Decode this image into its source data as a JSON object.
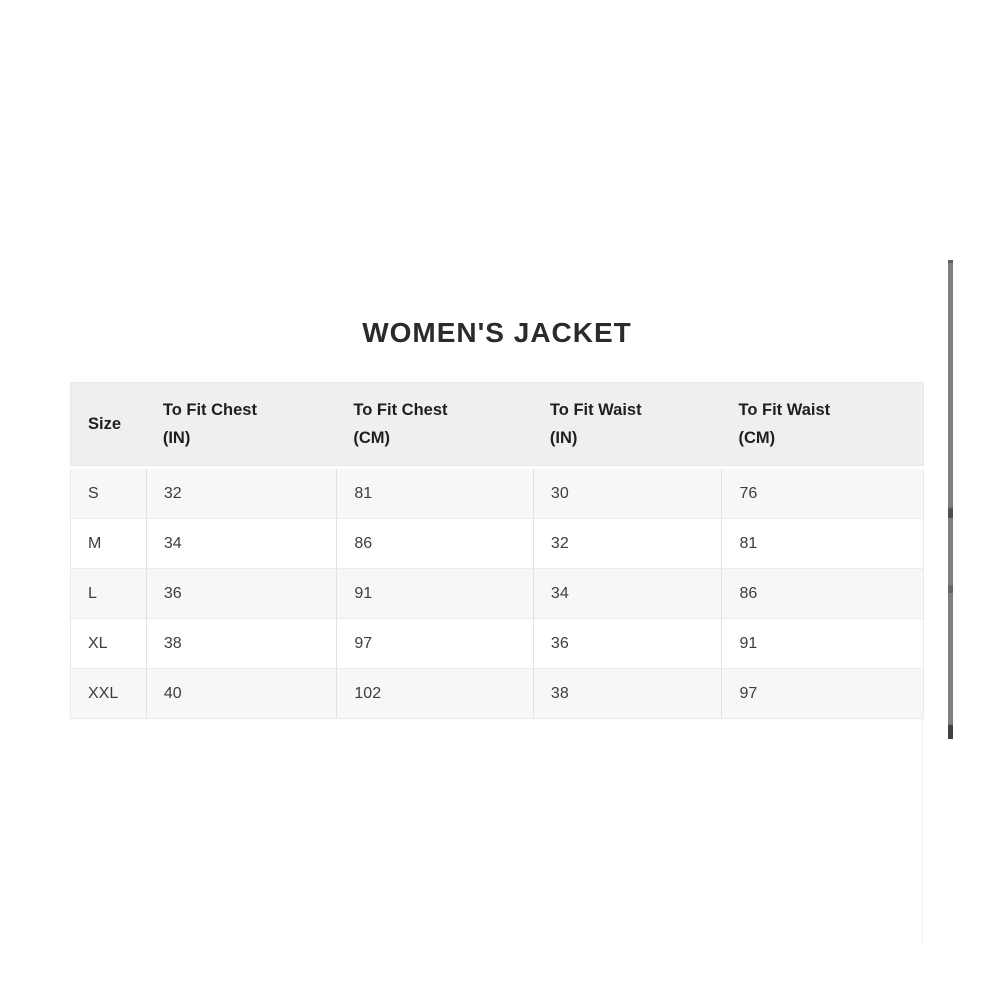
{
  "title": "WOMEN'S JACKET",
  "size_chart": {
    "headers": [
      {
        "line1": "Size",
        "line2": ""
      },
      {
        "line1": "To Fit Chest",
        "line2": "(IN)"
      },
      {
        "line1": "To Fit Chest",
        "line2": "(CM)"
      },
      {
        "line1": "To Fit Waist",
        "line2": "(IN)"
      },
      {
        "line1": "To Fit Waist",
        "line2": "(CM)"
      }
    ],
    "rows": [
      {
        "size": "S",
        "chest_in": "32",
        "chest_cm": "81",
        "waist_in": "30",
        "waist_cm": "76"
      },
      {
        "size": "M",
        "chest_in": "34",
        "chest_cm": "86",
        "waist_in": "32",
        "waist_cm": "81"
      },
      {
        "size": "L",
        "chest_in": "36",
        "chest_cm": "91",
        "waist_in": "34",
        "waist_cm": "86"
      },
      {
        "size": "XL",
        "chest_in": "38",
        "chest_cm": "97",
        "waist_in": "36",
        "waist_cm": "91"
      },
      {
        "size": "XXL",
        "chest_in": "40",
        "chest_cm": "102",
        "waist_in": "38",
        "waist_cm": "97"
      }
    ]
  },
  "colors": {
    "header_bg": "#f1efee",
    "row_alt_bg": "#f8f7f6",
    "row_bg": "#ffffff",
    "cell_border": "#e3e1df",
    "body_text": "#3d3d3d",
    "heading_text": "#2b2b2b",
    "scrollbar_gray": "#7f7f7f"
  }
}
